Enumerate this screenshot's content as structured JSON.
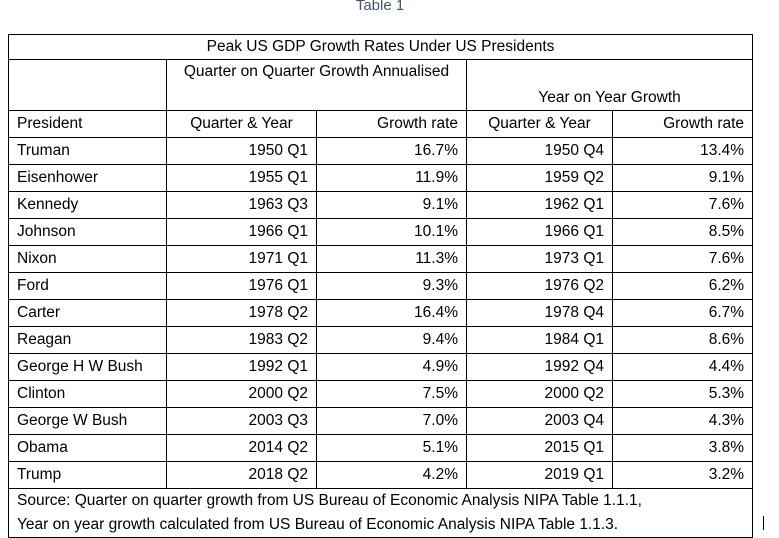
{
  "caption": "Table 1",
  "table": {
    "title": "Peak US GDP Growth Rates Under US Presidents",
    "group_qoq": "Quarter on Quarter Growth Annualised",
    "group_yoy": "Year on Year Growth",
    "headers": {
      "president": "President",
      "qoq_quarter": "Quarter & Year",
      "qoq_rate": "Growth rate",
      "yoy_quarter": "Quarter & Year",
      "yoy_rate": "Growth rate"
    },
    "rows": [
      {
        "president": "Truman",
        "qoq_quarter": "1950 Q1",
        "qoq_rate": "16.7%",
        "yoy_quarter": "1950 Q4",
        "yoy_rate": "13.4%"
      },
      {
        "president": "Eisenhower",
        "qoq_quarter": "1955 Q1",
        "qoq_rate": "11.9%",
        "yoy_quarter": "1959 Q2",
        "yoy_rate": "9.1%"
      },
      {
        "president": "Kennedy",
        "qoq_quarter": "1963 Q3",
        "qoq_rate": "9.1%",
        "yoy_quarter": "1962 Q1",
        "yoy_rate": "7.6%"
      },
      {
        "president": "Johnson",
        "qoq_quarter": "1966 Q1",
        "qoq_rate": "10.1%",
        "yoy_quarter": "1966 Q1",
        "yoy_rate": "8.5%"
      },
      {
        "president": "Nixon",
        "qoq_quarter": "1971 Q1",
        "qoq_rate": "11.3%",
        "yoy_quarter": "1973 Q1",
        "yoy_rate": "7.6%"
      },
      {
        "president": "Ford",
        "qoq_quarter": "1976 Q1",
        "qoq_rate": "9.3%",
        "yoy_quarter": "1976 Q2",
        "yoy_rate": "6.2%"
      },
      {
        "president": "Carter",
        "qoq_quarter": "1978 Q2",
        "qoq_rate": "16.4%",
        "yoy_quarter": "1978 Q4",
        "yoy_rate": "6.7%"
      },
      {
        "president": "Reagan",
        "qoq_quarter": "1983 Q2",
        "qoq_rate": "9.4%",
        "yoy_quarter": "1984 Q1",
        "yoy_rate": "8.6%"
      },
      {
        "president": "George H W Bush",
        "qoq_quarter": "1992 Q1",
        "qoq_rate": "4.9%",
        "yoy_quarter": "1992 Q4",
        "yoy_rate": "4.4%"
      },
      {
        "president": "Clinton",
        "qoq_quarter": "2000 Q2",
        "qoq_rate": "7.5%",
        "yoy_quarter": "2000 Q2",
        "yoy_rate": "5.3%"
      },
      {
        "president": "George W Bush",
        "qoq_quarter": "2003 Q3",
        "qoq_rate": "7.0%",
        "yoy_quarter": "2003 Q4",
        "yoy_rate": "4.3%"
      },
      {
        "president": "Obama",
        "qoq_quarter": "2014 Q2",
        "qoq_rate": "5.1%",
        "yoy_quarter": "2015 Q1",
        "yoy_rate": "3.8%"
      },
      {
        "president": "Trump",
        "qoq_quarter": "2018 Q2",
        "qoq_rate": "4.2%",
        "yoy_quarter": "2019 Q1",
        "yoy_rate": "3.2%"
      }
    ],
    "source_line1": "Source: Quarter on quarter growth from US Bureau of Economic Analysis NIPA Table 1.1.1,",
    "source_line2": "Year on year growth calculated from US Bureau of Economic Analysis NIPA Table 1.1.3."
  }
}
